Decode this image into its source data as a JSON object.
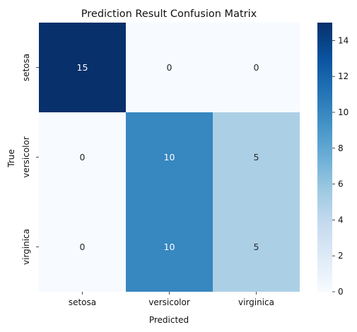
{
  "chart_data": {
    "type": "heatmap",
    "title": "Prediction Result Confusion Matrix",
    "xlabel": "Predicted",
    "ylabel": "True",
    "x_categories": [
      "setosa",
      "versicolor",
      "virginica"
    ],
    "y_categories": [
      "setosa",
      "versicolor",
      "virginica"
    ],
    "values": [
      [
        15,
        0,
        0
      ],
      [
        0,
        10,
        5
      ],
      [
        0,
        10,
        5
      ]
    ],
    "colormap": "Blues",
    "colorbar": {
      "range": [
        0,
        15
      ],
      "ticks": [
        "0",
        "2",
        "4",
        "6",
        "8",
        "10",
        "12",
        "14"
      ]
    }
  }
}
